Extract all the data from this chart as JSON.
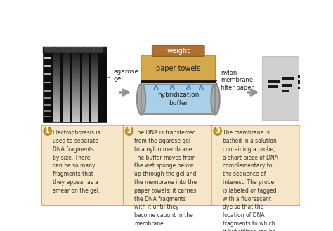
{
  "bg_color": "#ffffff",
  "box_bg": "#f5e6c8",
  "box_border": "#c8a870",
  "text1": "Electrophoresis is\nused to separate\nDNA fragments\nby size. There\ncan be so many\nfragments that\nthey appear as a\nsmear on the gel.",
  "text2": "The DNA is transferred\nfrom the agarose gel\nto a nylon membrane.\nThe buffer moves from\nthe wet sponge below\nup through the gel and\nthe membrane into the\npaper towels; it carries\nthe DNA fragments\nwith it until they\nbecome caught in the\nmembrane.",
  "text3": "The membrane is\nbathed in a solution\ncontaining a probe,\na short piece of DNA\ncomplementary to\nthe sequence of\ninterest. The probe\nis labeled or tagged\nwith a fluorescent\ndye so that the\nlocation of DNA\nfragments to which\nit hybridizes can be\nvisualized.",
  "label_agarose": "agarose\ngel",
  "label_weight": "weight",
  "label_paper_towels": "paper towels",
  "label_nylon": "nylon\nmembrane",
  "label_filter": "filter paper",
  "label_hybridization": "hybridization\nbuffer",
  "arrow_color": "#909090",
  "paper_towel_color": "#d4a84b",
  "paper_towel_edge": "#b8902a",
  "buffer_color": "#a8d0e8",
  "buffer_tub_color": "#909090",
  "weight_color": "#b07030",
  "weight_edge": "#906020",
  "blue_arrow_color": "#4488cc",
  "circle_color": "#c8a030",
  "circle_border": "#b08820",
  "nylon_line_color": "#222222",
  "filter_line_color": "#888888",
  "mem_bg": "#d0d0d0",
  "band_color": "#1a1a1a"
}
